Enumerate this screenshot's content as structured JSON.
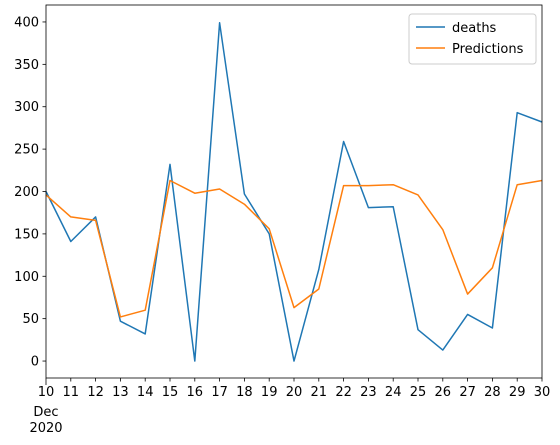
{
  "chart_data": {
    "type": "line",
    "x": [
      "10",
      "11",
      "12",
      "13",
      "14",
      "15",
      "16",
      "17",
      "18",
      "19",
      "20",
      "21",
      "22",
      "23",
      "24",
      "25",
      "26",
      "27",
      "28",
      "29",
      "30"
    ],
    "x_sublabel_month": "Dec",
    "x_sublabel_year": "2020",
    "ylim": [
      -20,
      420
    ],
    "yticks": [
      0,
      50,
      100,
      150,
      200,
      250,
      300,
      350,
      400
    ],
    "grid": false,
    "legend_position": "top-right",
    "series": [
      {
        "name": "deaths",
        "color": "#1f77b4",
        "values": [
          200,
          141,
          170,
          47,
          32,
          232,
          0,
          399,
          197,
          150,
          0,
          108,
          259,
          181,
          182,
          37,
          13,
          55,
          39,
          293,
          282
        ]
      },
      {
        "name": "Predictions",
        "color": "#ff7f0e",
        "values": [
          196,
          170,
          166,
          52,
          60,
          213,
          198,
          203,
          185,
          156,
          63,
          85,
          207,
          207,
          208,
          196,
          155,
          79,
          110,
          208,
          213
        ]
      }
    ]
  }
}
